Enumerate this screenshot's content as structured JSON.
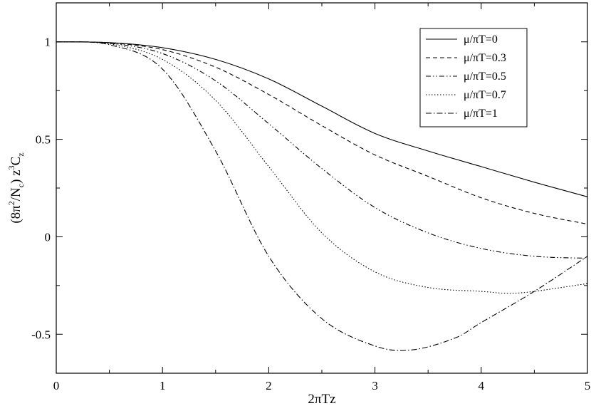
{
  "chart_data": {
    "type": "line",
    "xlabel": "2πTz",
    "ylabel_parts": {
      "open": "(8π",
      "sup1": "2",
      "mid1": "/N",
      "sub1": "c",
      "mid2": ") z",
      "sup2": "3",
      "mid3": "C",
      "sub2": "z"
    },
    "xlim": [
      0,
      5
    ],
    "ylim": [
      -0.7,
      1.2
    ],
    "x_ticks": [
      0,
      1,
      2,
      3,
      4,
      5
    ],
    "x_tick_labels": [
      "0",
      "1",
      "2",
      "3",
      "4",
      "5"
    ],
    "y_ticks": [
      -0.5,
      0,
      0.5,
      1
    ],
    "y_tick_labels": [
      "-0.5",
      "0",
      "0.5",
      "1"
    ],
    "grid": false,
    "legend_position": "top-right",
    "series": [
      {
        "name": "μ/πT=0",
        "dash": "none",
        "points": [
          [
            0,
            1
          ],
          [
            0.5,
            0.996
          ],
          [
            1,
            0.97
          ],
          [
            1.5,
            0.91
          ],
          [
            2,
            0.81
          ],
          [
            2.5,
            0.67
          ],
          [
            3,
            0.53
          ],
          [
            3.5,
            0.44
          ],
          [
            4,
            0.36
          ],
          [
            4.5,
            0.28
          ],
          [
            5,
            0.205
          ]
        ]
      },
      {
        "name": "μ/πT=0.3",
        "dash": "6,4",
        "points": [
          [
            0,
            1
          ],
          [
            0.5,
            0.995
          ],
          [
            1,
            0.96
          ],
          [
            1.5,
            0.87
          ],
          [
            2,
            0.73
          ],
          [
            2.5,
            0.57
          ],
          [
            3,
            0.42
          ],
          [
            3.5,
            0.31
          ],
          [
            4,
            0.2
          ],
          [
            4.5,
            0.12
          ],
          [
            5,
            0.065
          ]
        ]
      },
      {
        "name": "μ/πT=0.5",
        "dash": "7,3,1.5,3,1.5,3",
        "points": [
          [
            0,
            1
          ],
          [
            0.5,
            0.993
          ],
          [
            1,
            0.94
          ],
          [
            1.5,
            0.8
          ],
          [
            2,
            0.58
          ],
          [
            2.5,
            0.35
          ],
          [
            3,
            0.15
          ],
          [
            3.5,
            0.02
          ],
          [
            4,
            -0.06
          ],
          [
            4.5,
            -0.1
          ],
          [
            5,
            -0.11
          ]
        ]
      },
      {
        "name": "μ/πT=0.7",
        "dash": "1.5,2.5",
        "points": [
          [
            0,
            1
          ],
          [
            0.5,
            0.99
          ],
          [
            1,
            0.91
          ],
          [
            1.5,
            0.7
          ],
          [
            2,
            0.36
          ],
          [
            2.5,
            0.02
          ],
          [
            3,
            -0.18
          ],
          [
            3.5,
            -0.26
          ],
          [
            4,
            -0.28
          ],
          [
            4.25,
            -0.29
          ],
          [
            4.5,
            -0.28
          ],
          [
            5,
            -0.24
          ]
        ]
      },
      {
        "name": "μ/πT=1",
        "dash": "8,3,1.5,3",
        "points": [
          [
            0,
            1
          ],
          [
            0.5,
            0.985
          ],
          [
            1,
            0.86
          ],
          [
            1.5,
            0.44
          ],
          [
            2,
            -0.1
          ],
          [
            2.5,
            -0.42
          ],
          [
            3,
            -0.56
          ],
          [
            3.35,
            -0.58
          ],
          [
            3.75,
            -0.52
          ],
          [
            4,
            -0.44
          ],
          [
            4.5,
            -0.28
          ],
          [
            5,
            -0.1
          ]
        ]
      }
    ]
  }
}
